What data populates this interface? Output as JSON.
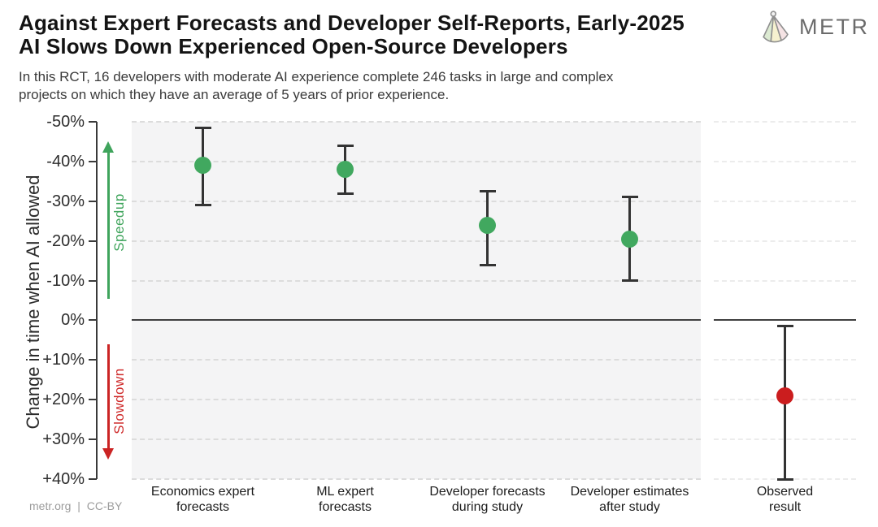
{
  "header": {
    "title_lines": [
      "Against Expert Forecasts and Developer Self-Reports, Early-2025",
      "AI Slows Down Experienced Open-Source Developers"
    ],
    "subtitle_lines": [
      "In this RCT, 16 developers with moderate AI experience complete 246 tasks in large and complex",
      "projects on which they have an average of 5 years of prior experience."
    ],
    "logo_text": "METR"
  },
  "footer": {
    "credit": "metr.org | CC-BY"
  },
  "chart_data": {
    "type": "scatter",
    "title": "Against Expert Forecasts and Developer Self-Reports, Early-2025 AI Slows Down Experienced Open-Source Developers",
    "subtitle": "In this RCT, 16 developers with moderate AI experience complete 246 tasks in large and complex projects on which they have an average of 5 years of prior experience.",
    "ylabel": "Change in time when AI allowed",
    "xlabel": "",
    "ylim": [
      -50,
      40
    ],
    "y_axis_inverted": true,
    "grid": "horizontal-dashed",
    "yticks": [
      "-50%",
      "-40%",
      "-30%",
      "-20%",
      "-10%",
      "0%",
      "+10%",
      "+20%",
      "+30%",
      "+40%"
    ],
    "ytick_values": [
      -50,
      -40,
      -30,
      -20,
      -10,
      0,
      10,
      20,
      30,
      40
    ],
    "annotations": {
      "speedup": {
        "label": "Speedup",
        "color": "#3fa45c",
        "direction": "up"
      },
      "slowdown": {
        "label": "Slowdown",
        "color": "#cb2424",
        "direction": "down"
      }
    },
    "colors": {
      "green": "#41a85f",
      "red": "#cb1d1e",
      "errorbar": "#333333",
      "zero_line": "#3f3f3f"
    },
    "panels": [
      {
        "name": "forecasts-and-estimates",
        "points": [
          {
            "label": "Economics expert\nforecasts",
            "value": -39,
            "ci": [
              -48.5,
              -29
            ],
            "color": "green"
          },
          {
            "label": "ML expert\nforecasts",
            "value": -38,
            "ci": [
              -44,
              -32
            ],
            "color": "green"
          },
          {
            "label": "Developer forecasts\nduring study",
            "value": -24,
            "ci": [
              -32.5,
              -14
            ],
            "color": "green"
          },
          {
            "label": "Developer estimates\nafter study",
            "value": -20.5,
            "ci": [
              -31,
              -10
            ],
            "color": "green"
          }
        ]
      },
      {
        "name": "observed",
        "points": [
          {
            "label": "Observed\nresult",
            "value": 19,
            "ci": [
              1.5,
              40
            ],
            "color": "red"
          }
        ]
      }
    ]
  }
}
